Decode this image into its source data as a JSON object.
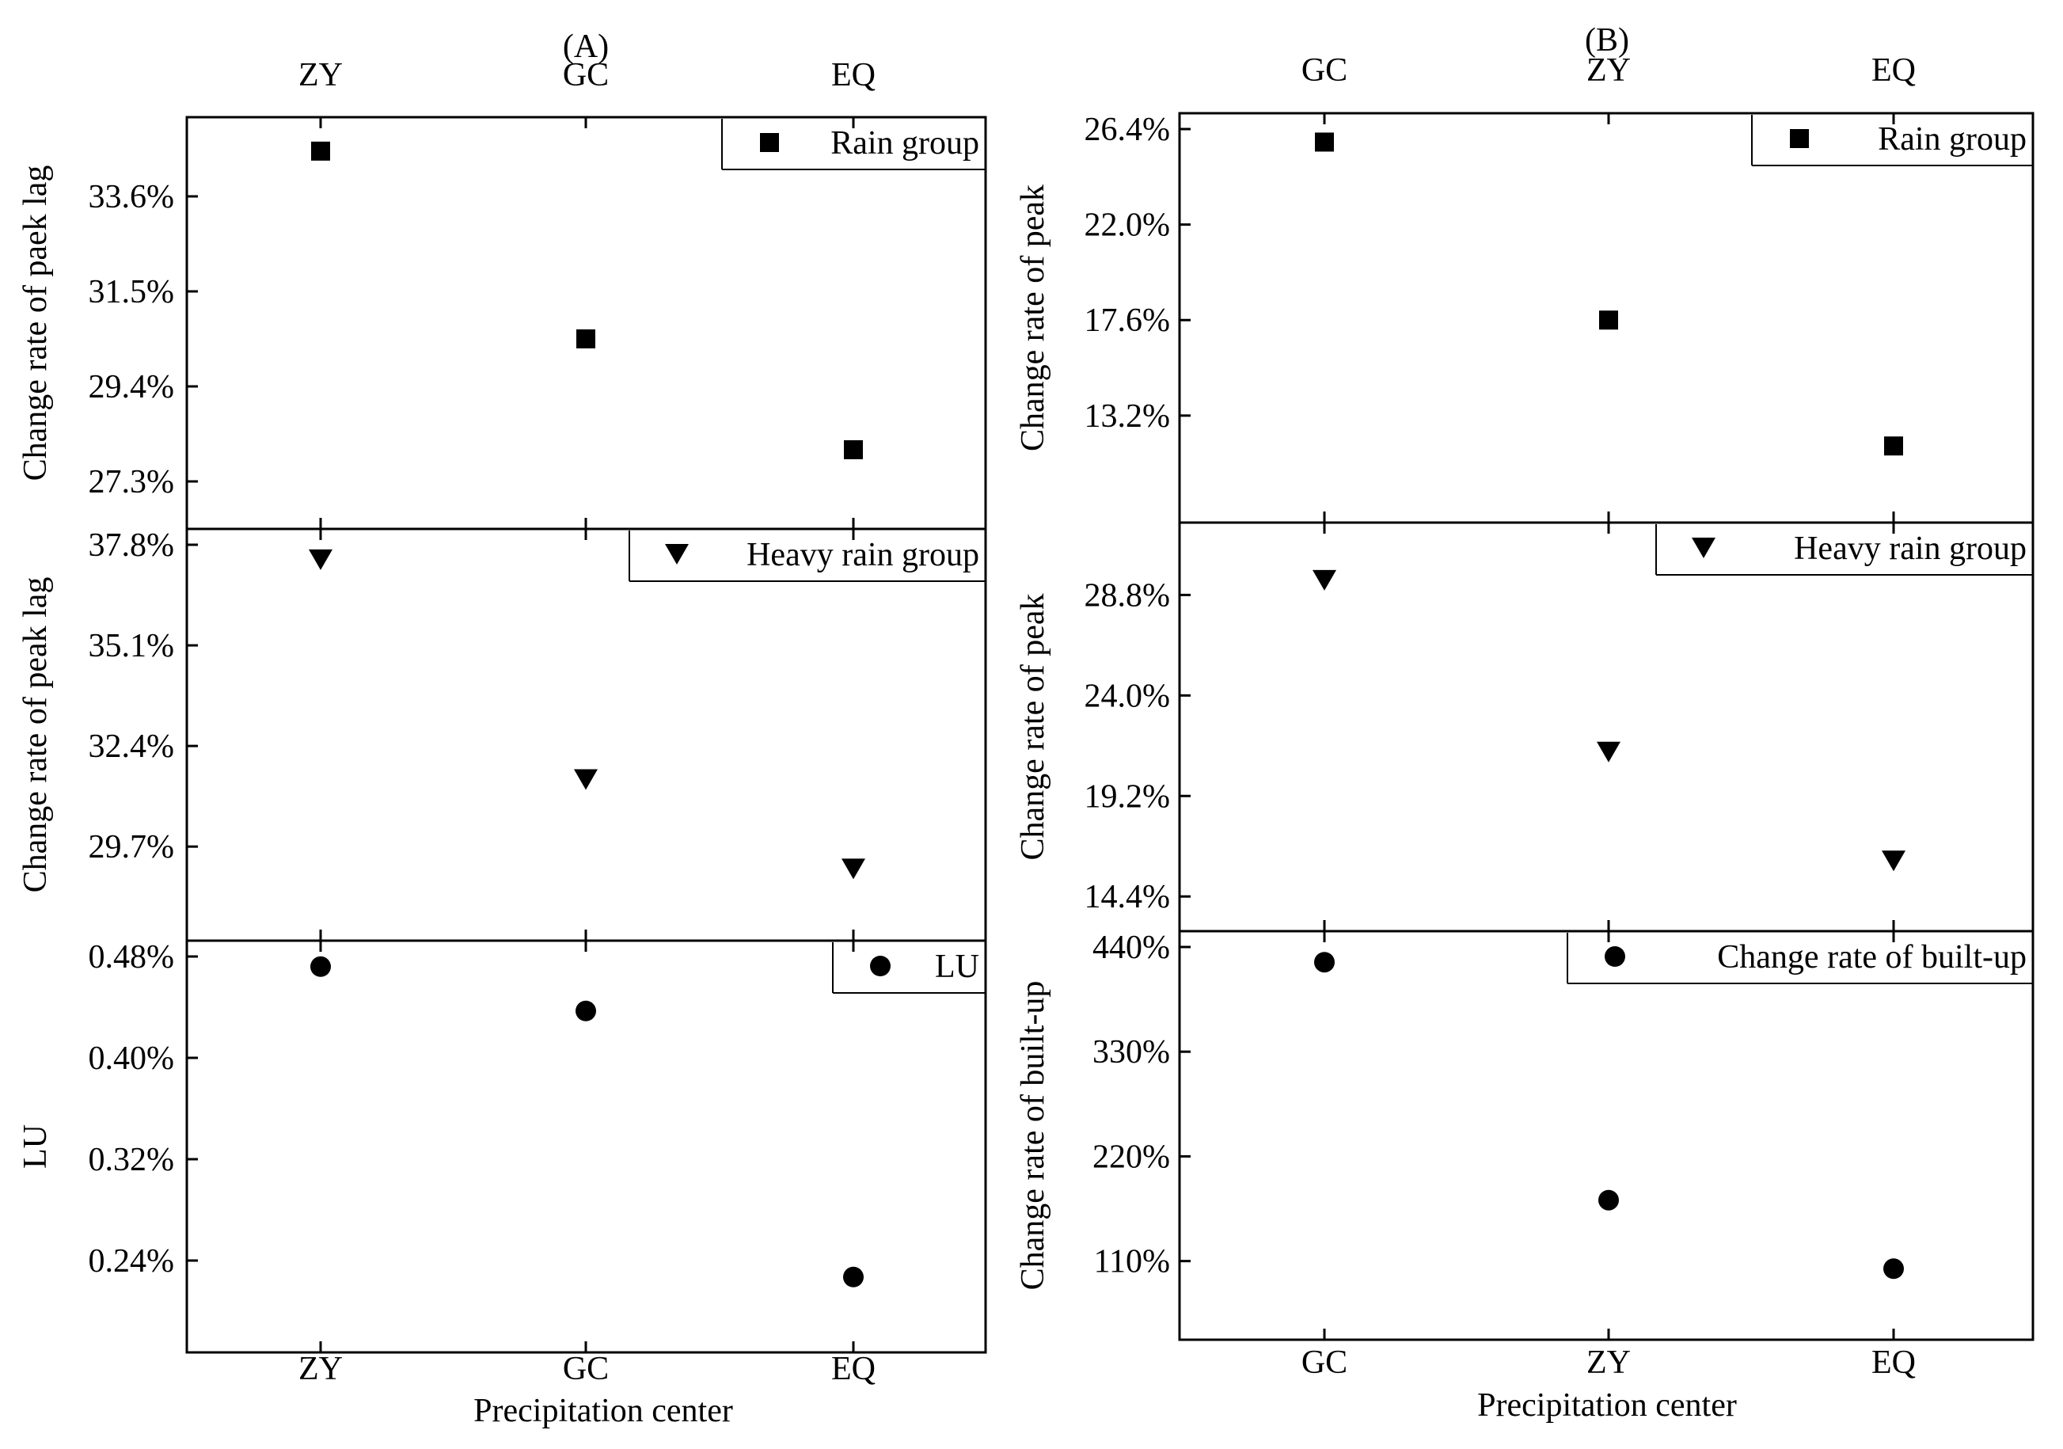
{
  "figure": {
    "panels": [
      {
        "tag": "(A)",
        "xlabel": "Precipitation center",
        "categories": [
          "ZY",
          "GC",
          "EQ"
        ]
      },
      {
        "tag": "(B)",
        "xlabel": "Precipitation center",
        "categories": [
          "GC",
          "ZY",
          "EQ"
        ]
      }
    ]
  },
  "chart_data": [
    {
      "type": "scatter",
      "panel": "(A)",
      "categories": [
        "ZY",
        "GC",
        "EQ"
      ],
      "ylabel": "Change rate of paek lag",
      "yticks": [
        "27.3%",
        "29.4%",
        "31.5%",
        "33.6%"
      ],
      "ylim": [
        26.6,
        35.0
      ],
      "series": [
        {
          "name": "Rain group",
          "marker": "square",
          "values": [
            34.6,
            30.45,
            28.0
          ]
        }
      ]
    },
    {
      "type": "scatter",
      "panel": "(A)",
      "categories": [
        "ZY",
        "GC",
        "EQ"
      ],
      "ylabel": "Change rate of peak lag",
      "yticks": [
        "29.7%",
        "32.4%",
        "35.1%",
        "37.8%"
      ],
      "ylim": [
        27.6,
        37.8
      ],
      "series": [
        {
          "name": "Heavy rain group",
          "marker": "triangle-down",
          "values": [
            37.4,
            31.5,
            29.1
          ]
        }
      ]
    },
    {
      "type": "scatter",
      "panel": "(A)",
      "categories": [
        "ZY",
        "GC",
        "EQ"
      ],
      "ylabel": "LU",
      "yticks": [
        "0.24%",
        "0.32%",
        "0.40%",
        "0.48%"
      ],
      "ylim": [
        0.18,
        0.48
      ],
      "series": [
        {
          "name": "LU",
          "marker": "circle",
          "values": [
            0.472,
            0.437,
            0.227
          ]
        }
      ]
    },
    {
      "type": "scatter",
      "panel": "(B)",
      "categories": [
        "GC",
        "ZY",
        "EQ"
      ],
      "ylabel": "Change rate of peak",
      "yticks": [
        "13.2%",
        "17.6%",
        "22.0%",
        "26.4%"
      ],
      "ylim": [
        9.0,
        26.4
      ],
      "series": [
        {
          "name": "Rain group",
          "marker": "square",
          "values": [
            25.8,
            17.6,
            11.8
          ]
        }
      ]
    },
    {
      "type": "scatter",
      "panel": "(B)",
      "categories": [
        "GC",
        "ZY",
        "EQ"
      ],
      "ylabel": "Change rate of peak",
      "yticks": [
        "14.4%",
        "19.2%",
        "24.0%",
        "28.8%"
      ],
      "ylim": [
        13.5,
        31.5
      ],
      "series": [
        {
          "name": "Heavy rain group",
          "marker": "triangle-down",
          "values": [
            29.5,
            21.3,
            16.1
          ]
        }
      ]
    },
    {
      "type": "scatter",
      "panel": "(B)",
      "categories": [
        "GC",
        "ZY",
        "EQ"
      ],
      "ylabel": "Change rate of built-up",
      "yticks": [
        "110%",
        "220%",
        "330%",
        "440%"
      ],
      "ylim": [
        44,
        440
      ],
      "series": [
        {
          "name": "Change rate of built-up",
          "marker": "circle",
          "values": [
            424,
            174,
            102
          ]
        }
      ]
    }
  ]
}
